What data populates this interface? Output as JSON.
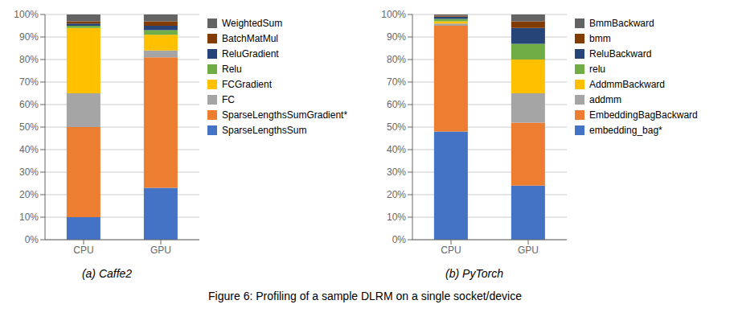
{
  "title": "Figure 6: Profiling of a sample DLRM on a single socket/device",
  "chart_data": [
    {
      "type": "bar",
      "stacked": true,
      "subtitle": "(a) Caffe2",
      "categories": [
        "CPU",
        "GPU"
      ],
      "series": [
        {
          "name": "SparseLengthsSum",
          "color": "#4472C4",
          "values": [
            10,
            23
          ]
        },
        {
          "name": "SparseLengthsSumGradient*",
          "color": "#ED7D31",
          "values": [
            40,
            58
          ]
        },
        {
          "name": "FC",
          "color": "#A5A5A5",
          "values": [
            15,
            3
          ]
        },
        {
          "name": "FCGradient",
          "color": "#FFC000",
          "values": [
            29,
            7
          ]
        },
        {
          "name": "Relu",
          "color": "#70AD47",
          "values": [
            1,
            2
          ]
        },
        {
          "name": "ReluGradient",
          "color": "#264478",
          "values": [
            1,
            2
          ]
        },
        {
          "name": "BatchMatMul",
          "color": "#833C00",
          "values": [
            1,
            2
          ]
        },
        {
          "name": "WeightedSum",
          "color": "#636363",
          "values": [
            3,
            3
          ]
        }
      ],
      "ylim": [
        0,
        100
      ],
      "yticks": [
        {
          "value": 0,
          "label": "0%"
        },
        {
          "value": 10,
          "label": "10%"
        },
        {
          "value": 20,
          "label": "20%"
        },
        {
          "value": 30,
          "label": "30%"
        },
        {
          "value": 40,
          "label": "40%"
        },
        {
          "value": 50,
          "label": "50%"
        },
        {
          "value": 60,
          "label": "60%"
        },
        {
          "value": 70,
          "label": "70%"
        },
        {
          "value": 80,
          "label": "80%"
        },
        {
          "value": 90,
          "label": "90%"
        },
        {
          "value": 100,
          "label": "100%"
        }
      ],
      "grid": true,
      "legend": "right"
    },
    {
      "type": "bar",
      "stacked": true,
      "subtitle": "(b) PyTorch",
      "categories": [
        "CPU",
        "GPU"
      ],
      "series": [
        {
          "name": "embedding_bag*",
          "color": "#4472C4",
          "values": [
            48,
            24
          ]
        },
        {
          "name": "EmbeddingBagBackward",
          "color": "#ED7D31",
          "values": [
            47,
            28
          ]
        },
        {
          "name": "addmm",
          "color": "#A5A5A5",
          "values": [
            1,
            13
          ]
        },
        {
          "name": "AddmmBackward",
          "color": "#FFC000",
          "values": [
            1,
            15
          ]
        },
        {
          "name": "relu",
          "color": "#70AD47",
          "values": [
            1,
            7
          ]
        },
        {
          "name": "ReluBackward",
          "color": "#264478",
          "values": [
            1,
            7
          ]
        },
        {
          "name": "bmm",
          "color": "#833C00",
          "values": [
            0.5,
            3
          ]
        },
        {
          "name": "BmmBackward",
          "color": "#636363",
          "values": [
            0.5,
            3
          ]
        }
      ],
      "ylim": [
        0,
        100
      ],
      "yticks": [
        {
          "value": 0,
          "label": "0%"
        },
        {
          "value": 10,
          "label": "10%"
        },
        {
          "value": 20,
          "label": "20%"
        },
        {
          "value": 30,
          "label": "30%"
        },
        {
          "value": 40,
          "label": "40%"
        },
        {
          "value": 50,
          "label": "50%"
        },
        {
          "value": 60,
          "label": "60%"
        },
        {
          "value": 70,
          "label": "70%"
        },
        {
          "value": 80,
          "label": "80%"
        },
        {
          "value": 90,
          "label": "90%"
        },
        {
          "value": 100,
          "label": "100%"
        }
      ],
      "grid": true,
      "legend": "right"
    }
  ]
}
